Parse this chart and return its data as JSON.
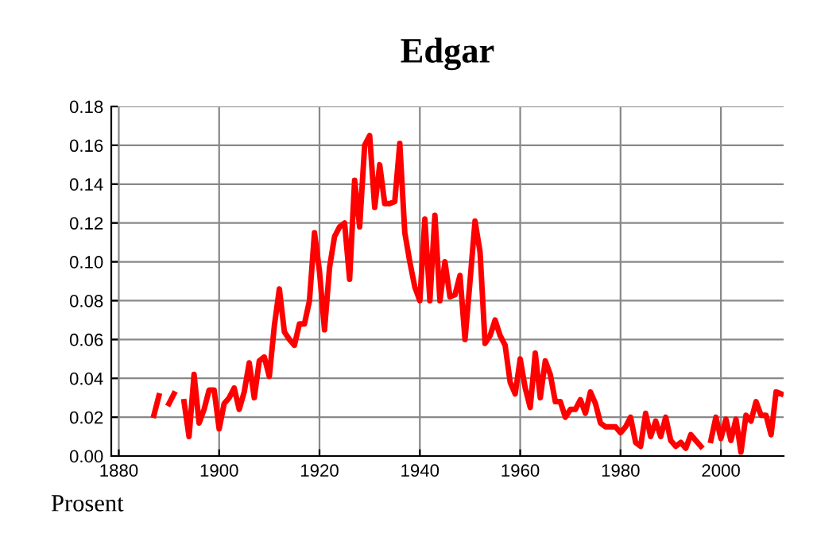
{
  "chart_data": {
    "type": "line",
    "title": "Edgar",
    "ylabel": "Prosent",
    "x": [
      1887,
      1888,
      1889,
      1890,
      1891,
      1892,
      1893,
      1894,
      1895,
      1896,
      1897,
      1898,
      1899,
      1900,
      1901,
      1902,
      1903,
      1904,
      1905,
      1906,
      1907,
      1908,
      1909,
      1910,
      1911,
      1912,
      1913,
      1914,
      1915,
      1916,
      1917,
      1918,
      1919,
      1920,
      1921,
      1922,
      1923,
      1924,
      1925,
      1926,
      1927,
      1928,
      1929,
      1930,
      1931,
      1932,
      1933,
      1934,
      1935,
      1936,
      1937,
      1938,
      1939,
      1940,
      1941,
      1942,
      1943,
      1944,
      1945,
      1946,
      1947,
      1948,
      1949,
      1950,
      1951,
      1952,
      1953,
      1954,
      1955,
      1956,
      1957,
      1958,
      1959,
      1960,
      1961,
      1962,
      1963,
      1964,
      1965,
      1966,
      1967,
      1968,
      1969,
      1970,
      1971,
      1972,
      1973,
      1974,
      1975,
      1976,
      1977,
      1978,
      1979,
      1980,
      1981,
      1982,
      1983,
      1984,
      1985,
      1986,
      1987,
      1988,
      1989,
      1990,
      1991,
      1992,
      1993,
      1994,
      1995,
      1996,
      1997,
      1998,
      1999,
      2000,
      2001,
      2002,
      2003,
      2004,
      2005,
      2006,
      2007,
      2008,
      2009,
      2010,
      2011,
      2012
    ],
    "series": [
      {
        "color": "#ff0000",
        "values": [
          0.021,
          0.031,
          null,
          0.027,
          0.032,
          null,
          0.028,
          0.01,
          0.042,
          0.017,
          0.024,
          0.034,
          0.034,
          0.014,
          0.027,
          0.03,
          0.035,
          0.024,
          0.033,
          0.048,
          0.03,
          0.049,
          0.051,
          0.041,
          0.067,
          0.086,
          0.064,
          0.06,
          0.057,
          0.068,
          0.068,
          0.08,
          0.115,
          0.095,
          0.065,
          0.097,
          0.113,
          0.118,
          0.12,
          0.091,
          0.142,
          0.118,
          0.16,
          0.165,
          0.128,
          0.15,
          0.13,
          0.13,
          0.131,
          0.161,
          0.115,
          0.1,
          0.087,
          0.08,
          0.122,
          0.08,
          0.124,
          0.08,
          0.1,
          0.082,
          0.083,
          0.093,
          0.06,
          0.09,
          0.121,
          0.105,
          0.058,
          0.062,
          0.07,
          0.062,
          0.057,
          0.038,
          0.032,
          0.05,
          0.035,
          0.025,
          0.053,
          0.03,
          0.049,
          0.042,
          0.028,
          0.028,
          0.02,
          0.024,
          0.024,
          0.029,
          0.022,
          0.033,
          0.027,
          0.017,
          0.015,
          0.015,
          0.015,
          0.012,
          0.015,
          0.02,
          0.007,
          0.005,
          0.022,
          0.01,
          0.018,
          0.01,
          0.02,
          0.008,
          0.005,
          0.007,
          0.004,
          0.011,
          0.008,
          0.005,
          null,
          0.008,
          0.02,
          0.009,
          0.019,
          0.008,
          0.019,
          0.002,
          0.021,
          0.018,
          0.028,
          0.021,
          0.021,
          0.011,
          0.033,
          0.032
        ]
      }
    ],
    "xlim": [
      1878.5,
      2012.5
    ],
    "xticks": [
      1880,
      1900,
      1920,
      1940,
      1960,
      1980,
      2000
    ],
    "ylim": [
      0,
      0.18
    ],
    "yticks": [
      {
        "value": 0,
        "label": "0.00"
      },
      {
        "value": 0.02,
        "label": "0.02"
      },
      {
        "value": 0.04,
        "label": "0.04"
      },
      {
        "value": 0.06,
        "label": "0.06"
      },
      {
        "value": 0.08,
        "label": "0.08"
      },
      {
        "value": 0.1,
        "label": "0.10"
      },
      {
        "value": 0.12,
        "label": "0.12"
      },
      {
        "value": 0.14,
        "label": "0.14"
      },
      {
        "value": 0.16,
        "label": "0.16"
      },
      {
        "value": 0.18,
        "label": "0.18"
      }
    ],
    "grid": true,
    "line_style": "solid",
    "marker": "none"
  }
}
